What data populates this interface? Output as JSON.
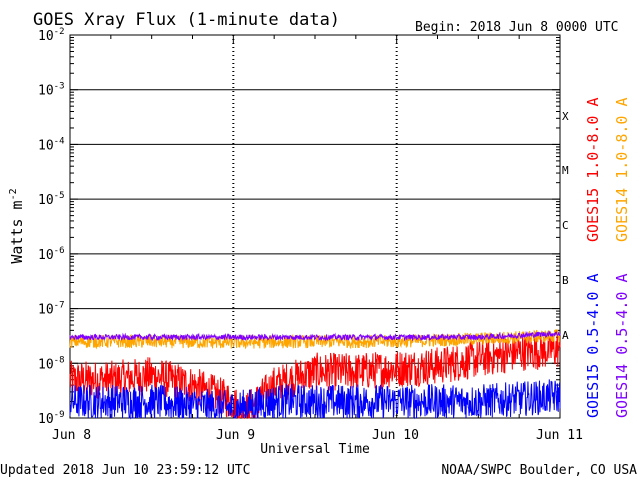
{
  "header": {
    "title": "GOES Xray Flux (1-minute data)",
    "begin": "Begin:  2018 Jun 8 0000 UTC"
  },
  "footer": {
    "updated": "Updated 2018 Jun 10 23:59:12 UTC",
    "credit": "NOAA/SWPC Boulder, CO USA"
  },
  "colors": {
    "goes15_long": "#ff0000",
    "goes14_long": "#ffa500",
    "goes15_short": "#0000ff",
    "goes14_short": "#7f00ff"
  },
  "chart_data": {
    "type": "line",
    "title": "GOES Xray Flux (1-minute data)",
    "xlabel": "Universal Time",
    "ylabel": "Watts m-2",
    "ylabel_base": "Watts m",
    "ylabel_exp": "-2",
    "yscale": "log",
    "ylim": [
      1e-09,
      0.01
    ],
    "xlim_days": [
      0,
      3
    ],
    "x_ticks": [
      "Jun 8",
      "Jun 9",
      "Jun 10",
      "Jun 11"
    ],
    "y_ticks": [
      {
        "base": "10",
        "exp": "-2"
      },
      {
        "base": "10",
        "exp": "-3"
      },
      {
        "base": "10",
        "exp": "-4"
      },
      {
        "base": "10",
        "exp": "-5"
      },
      {
        "base": "10",
        "exp": "-6"
      },
      {
        "base": "10",
        "exp": "-7"
      },
      {
        "base": "10",
        "exp": "-8"
      },
      {
        "base": "10",
        "exp": "-9"
      }
    ],
    "flare_classes": [
      "X",
      "M",
      "C",
      "B",
      "A"
    ],
    "grid": true,
    "series": [
      {
        "name": "GOES15 1.0-8.0 A",
        "color": "#ff0000",
        "x": [
          0,
          0.25,
          0.5,
          0.75,
          1.0,
          1.05,
          1.1,
          1.25,
          1.5,
          1.75,
          2.0,
          2.25,
          2.5,
          2.75,
          3.0
        ],
        "y": [
          5e-09,
          5e-09,
          6e-09,
          4e-09,
          2e-09,
          1.2e-09,
          1.5e-09,
          4e-09,
          7e-09,
          7e-09,
          8e-09,
          9e-09,
          1.2e-08,
          1.6e-08,
          1.8e-08
        ]
      },
      {
        "name": "GOES14 1.0-8.0 A",
        "color": "#ffa500",
        "x": [
          0,
          0.5,
          1.0,
          1.5,
          2.0,
          2.5,
          3.0
        ],
        "y": [
          2.5e-08,
          2.5e-08,
          2.4e-08,
          2.5e-08,
          2.5e-08,
          2.8e-08,
          3.2e-08
        ]
      },
      {
        "name": "GOES15 0.5-4.0 A",
        "color": "#0000ff",
        "x": [
          0,
          0.5,
          1.0,
          1.25,
          1.5,
          2.0,
          2.5,
          3.0
        ],
        "y": [
          2e-09,
          2e-09,
          1.5e-09,
          2e-09,
          2e-09,
          2e-09,
          2e-09,
          2.5e-09
        ]
      },
      {
        "name": "GOES14 0.5-4.0 A",
        "color": "#7f00ff",
        "x": [
          0,
          0.5,
          1.0,
          1.5,
          2.0,
          2.5,
          3.0
        ],
        "y": [
          3e-08,
          3e-08,
          3e-08,
          3e-08,
          3e-08,
          3e-08,
          3.5e-08
        ]
      }
    ]
  }
}
